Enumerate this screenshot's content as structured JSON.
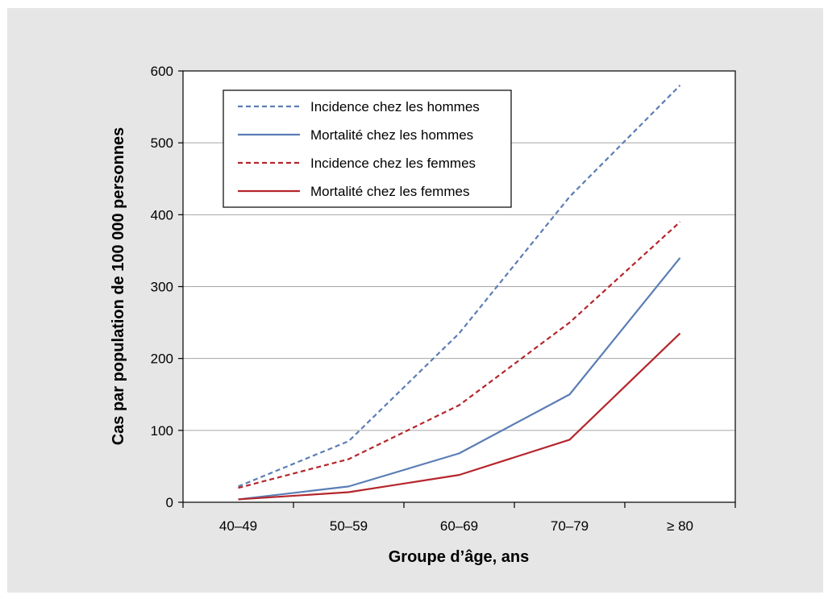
{
  "chart_data": {
    "type": "line",
    "title": "",
    "xlabel": "Groupe d’âge, ans",
    "ylabel": "Cas par population de 100 000 personnes",
    "categories": [
      "40–49",
      "50–59",
      "60–69",
      "70–79",
      "≥ 80"
    ],
    "ylim": [
      0,
      600
    ],
    "yticks": [
      0,
      100,
      200,
      300,
      400,
      500,
      600
    ],
    "grid": true,
    "legend_position": "top-left",
    "series": [
      {
        "name": "Incidence chez les hommes",
        "values": [
          22,
          85,
          235,
          425,
          580
        ],
        "color": "#5b7db5",
        "dashed": true
      },
      {
        "name": "Mortalité chez les hommes",
        "values": [
          4,
          22,
          68,
          150,
          340
        ],
        "color": "#5b7db5",
        "dashed": false
      },
      {
        "name": "Incidence chez les femmes",
        "values": [
          20,
          60,
          135,
          250,
          390
        ],
        "color": "#b5262c",
        "dashed": true
      },
      {
        "name": "Mortalité chez les femmes",
        "values": [
          4,
          14,
          38,
          87,
          235
        ],
        "color": "#b5262c",
        "dashed": false
      }
    ]
  }
}
